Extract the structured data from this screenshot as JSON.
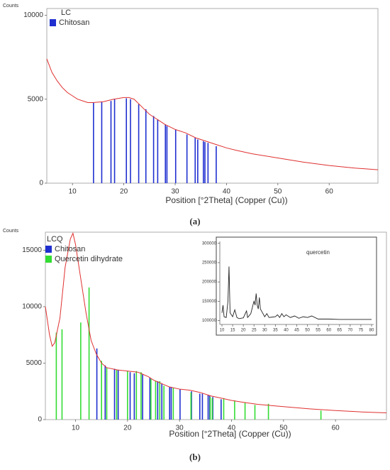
{
  "chart_data": [
    {
      "type": "line",
      "panel_label": "(a)",
      "y_label": "Counts",
      "legend_title": "LC",
      "x_label": "Position [°2Theta] (Copper (Cu))",
      "xlim": [
        5,
        69.5
      ],
      "xticks": [
        10,
        20,
        30,
        40,
        50,
        60
      ],
      "ylim": [
        0,
        10400
      ],
      "yticks": [
        0,
        5000,
        10000
      ],
      "frame": true,
      "series": [
        {
          "kind": "line",
          "color": "#e03030",
          "x": [
            5,
            6,
            7,
            8,
            9,
            10,
            11,
            12,
            13,
            14,
            16,
            18,
            20,
            21,
            22,
            23,
            24,
            25,
            26,
            27,
            28,
            30,
            32,
            34,
            35,
            36,
            38,
            40,
            42,
            45,
            50,
            55,
            60,
            65,
            69.5
          ],
          "values": [
            7400,
            6600,
            6100,
            5700,
            5400,
            5200,
            5000,
            4900,
            4800,
            4800,
            4850,
            5000,
            5100,
            5100,
            5000,
            4700,
            4400,
            4100,
            3900,
            3700,
            3500,
            3200,
            3000,
            2700,
            2600,
            2500,
            2300,
            2100,
            1950,
            1750,
            1500,
            1250,
            1050,
            900,
            800
          ]
        },
        {
          "kind": "stick",
          "name": "Chitosan",
          "color": "#1f2fd0",
          "x": [
            14.1,
            15.7,
            17.5,
            18.2,
            20.5,
            21.3,
            22.9,
            24.3,
            25.8,
            26.6,
            28.1,
            28.4,
            30.1,
            32.3,
            33.9,
            34.4,
            35.5,
            35.8,
            36.4,
            38.0
          ],
          "values": [
            4800,
            4850,
            4900,
            5000,
            5050,
            5000,
            4700,
            4400,
            4000,
            3800,
            3500,
            3400,
            3200,
            2900,
            2700,
            2600,
            2500,
            2450,
            2400,
            2200
          ]
        }
      ]
    },
    {
      "type": "line",
      "panel_label": "(b)",
      "y_label": "Counts",
      "legend_title": "LCQ",
      "x_label": "Position [°2Theta] (Copper (Cu))",
      "xlim": [
        4.2,
        69.8
      ],
      "xticks": [
        10,
        20,
        30,
        40,
        50,
        60
      ],
      "ylim": [
        0,
        16600
      ],
      "yticks": [
        0,
        5000,
        10000,
        15000
      ],
      "frame": true,
      "series": [
        {
          "kind": "line",
          "color": "#e03030",
          "x": [
            4.2,
            5,
            5.5,
            6,
            7,
            8,
            9,
            9.5,
            10,
            11,
            12,
            13,
            14,
            15,
            16,
            18,
            20,
            22,
            23,
            24,
            25,
            26,
            27,
            28,
            30,
            32,
            34,
            36,
            38,
            40,
            42,
            45,
            50,
            55,
            60,
            65,
            69.8
          ],
          "values": [
            10000,
            7500,
            6500,
            6800,
            9000,
            13500,
            16000,
            16500,
            15500,
            12500,
            9500,
            7000,
            5800,
            5000,
            4600,
            4400,
            4300,
            4200,
            4000,
            3800,
            3500,
            3300,
            3100,
            2900,
            2700,
            2600,
            2400,
            2100,
            1900,
            1700,
            1550,
            1350,
            1150,
            950,
            800,
            680,
            600
          ]
        },
        {
          "kind": "stick",
          "name": "Chitosan",
          "color": "#1f2fd0",
          "x": [
            14.1,
            15.7,
            17.5,
            18.2,
            20.5,
            21.3,
            22.9,
            24.3,
            25.8,
            26.6,
            28.1,
            28.4,
            30.1,
            32.3,
            33.9,
            34.4,
            35.5,
            35.8,
            36.4,
            38.0
          ],
          "values": [
            6300,
            4800,
            4500,
            4400,
            4200,
            4100,
            4000,
            3700,
            3400,
            3200,
            2900,
            2900,
            2700,
            2500,
            2300,
            2300,
            2200,
            2100,
            2000,
            1800
          ]
        },
        {
          "kind": "stick",
          "name": "Quercetin dihydrate",
          "color": "#33dd33",
          "x": [
            6.3,
            7.4,
            11.0,
            12.6,
            15.0,
            16.0,
            17.9,
            20.0,
            21.7,
            22.6,
            24.5,
            25.4,
            26.2,
            27.0,
            28.8,
            32.2,
            35.9,
            36.3,
            38.5,
            40.6,
            42.6,
            44.5,
            47.1,
            57.2
          ],
          "values": [
            7700,
            8000,
            8600,
            11700,
            5200,
            4600,
            4400,
            4300,
            4300,
            4200,
            3600,
            3400,
            3400,
            3000,
            2800,
            2400,
            2000,
            1900,
            1900,
            1700,
            1500,
            1300,
            1400,
            800
          ]
        }
      ]
    },
    {
      "type": "line",
      "title": "quercetin",
      "xlim": [
        9,
        81
      ],
      "xticks": [
        10,
        15,
        20,
        25,
        30,
        35,
        40,
        45,
        50,
        55,
        60,
        65,
        70,
        75,
        80
      ],
      "ylim": [
        90000,
        305000
      ],
      "yticks": [
        100000,
        150000,
        200000,
        250000,
        300000
      ],
      "frame": false,
      "series": [
        {
          "kind": "line",
          "color": "#222222",
          "x": [
            10,
            10.5,
            11,
            12,
            12.8,
            13.3,
            13.8,
            15,
            16,
            17,
            18,
            20,
            21.5,
            22,
            23.5,
            24.5,
            25,
            25.5,
            26,
            26.5,
            27,
            27.5,
            28,
            29,
            30,
            31,
            32,
            35,
            36,
            37,
            38,
            39,
            40,
            42,
            44,
            46,
            48,
            50,
            52,
            55,
            60,
            65,
            70,
            75,
            80
          ],
          "values": [
            120000,
            140000,
            110000,
            108000,
            150000,
            240000,
            120000,
            110000,
            128000,
            108000,
            105000,
            107000,
            125000,
            108000,
            118000,
            140000,
            150000,
            140000,
            170000,
            140000,
            130000,
            160000,
            130000,
            120000,
            110000,
            118000,
            108000,
            110000,
            115000,
            108000,
            118000,
            110000,
            115000,
            108000,
            112000,
            106000,
            110000,
            108000,
            112000,
            104000,
            104000,
            103000,
            103000,
            103000,
            103000
          ]
        }
      ]
    }
  ]
}
